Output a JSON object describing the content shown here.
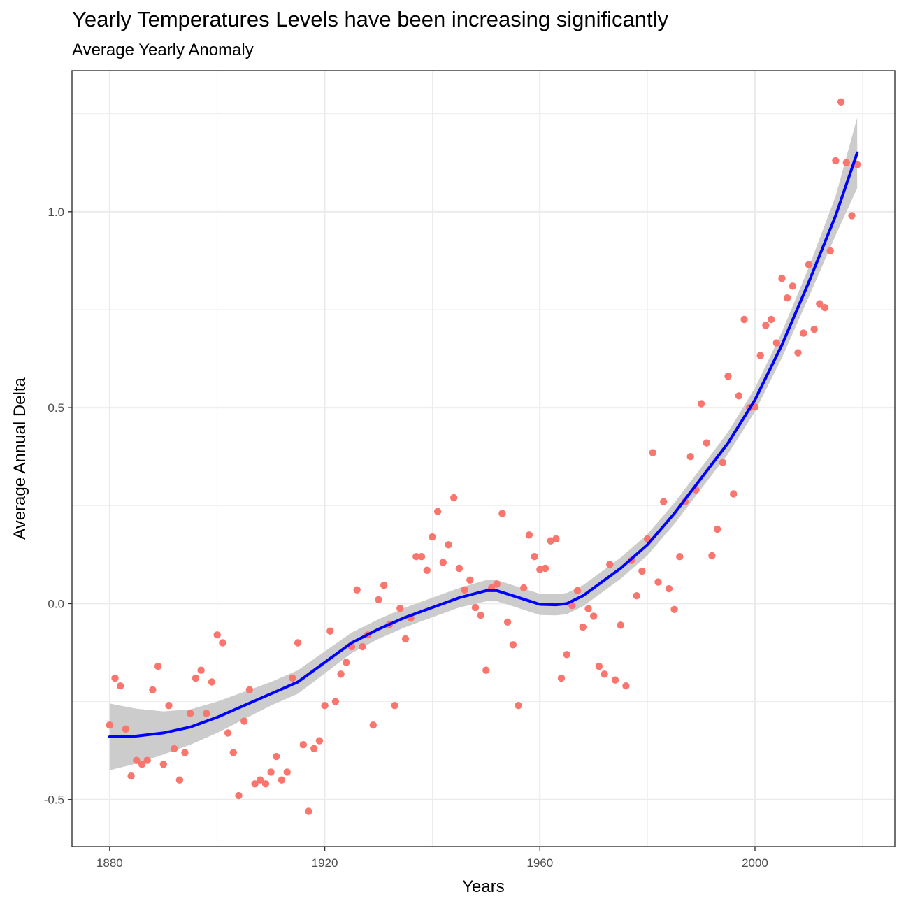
{
  "chart_data": {
    "type": "scatter",
    "title": "Yearly Temperatures Levels have been increasing significantly",
    "subtitle": "Average Yearly Anomaly",
    "xlabel": "Years",
    "ylabel": "Average Annual Delta",
    "xlim": [
      1873,
      2026
    ],
    "ylim": [
      -0.62,
      1.36
    ],
    "x_ticks": [
      1880,
      1920,
      1960,
      2000
    ],
    "x_tick_labels": [
      "1880",
      "1920",
      "1960",
      "2000"
    ],
    "y_ticks": [
      -0.5,
      0.0,
      0.5,
      1.0
    ],
    "y_tick_labels": [
      "-0.5",
      "0.0",
      "0.5",
      "1.0"
    ],
    "grid": true,
    "colors": {
      "points": "#f8766d",
      "smooth": "#0000ff",
      "band": "#cccccc",
      "grid": "#ebebeb",
      "panel_border": "#333333"
    },
    "points": [
      [
        1880,
        -0.31
      ],
      [
        1881,
        -0.19
      ],
      [
        1882,
        -0.21
      ],
      [
        1883,
        -0.32
      ],
      [
        1884,
        -0.44
      ],
      [
        1885,
        -0.4
      ],
      [
        1886,
        -0.41
      ],
      [
        1887,
        -0.4
      ],
      [
        1888,
        -0.22
      ],
      [
        1889,
        -0.16
      ],
      [
        1890,
        -0.41
      ],
      [
        1891,
        -0.26
      ],
      [
        1892,
        -0.37
      ],
      [
        1893,
        -0.45
      ],
      [
        1894,
        -0.38
      ],
      [
        1895,
        -0.28
      ],
      [
        1896,
        -0.19
      ],
      [
        1897,
        -0.17
      ],
      [
        1898,
        -0.28
      ],
      [
        1899,
        -0.2
      ],
      [
        1900,
        -0.08
      ],
      [
        1901,
        -0.1
      ],
      [
        1902,
        -0.33
      ],
      [
        1903,
        -0.38
      ],
      [
        1904,
        -0.49
      ],
      [
        1905,
        -0.3
      ],
      [
        1906,
        -0.22
      ],
      [
        1907,
        -0.46
      ],
      [
        1908,
        -0.45
      ],
      [
        1909,
        -0.46
      ],
      [
        1910,
        -0.43
      ],
      [
        1911,
        -0.39
      ],
      [
        1912,
        -0.45
      ],
      [
        1913,
        -0.43
      ],
      [
        1914,
        -0.19
      ],
      [
        1915,
        -0.1
      ],
      [
        1916,
        -0.36
      ],
      [
        1917,
        -0.53
      ],
      [
        1918,
        -0.37
      ],
      [
        1919,
        -0.35
      ],
      [
        1920,
        -0.26
      ],
      [
        1921,
        -0.07
      ],
      [
        1922,
        -0.25
      ],
      [
        1923,
        -0.18
      ],
      [
        1924,
        -0.15
      ],
      [
        1925,
        -0.11
      ],
      [
        1926,
        0.035
      ],
      [
        1927,
        -0.11
      ],
      [
        1928,
        -0.08
      ],
      [
        1929,
        -0.31
      ],
      [
        1930,
        0.01
      ],
      [
        1931,
        0.047
      ],
      [
        1932,
        -0.054
      ],
      [
        1933,
        -0.26
      ],
      [
        1934,
        -0.012
      ],
      [
        1935,
        -0.09
      ],
      [
        1936,
        -0.037
      ],
      [
        1937,
        0.12
      ],
      [
        1938,
        0.12
      ],
      [
        1939,
        0.085
      ],
      [
        1940,
        0.17
      ],
      [
        1941,
        0.235
      ],
      [
        1942,
        0.105
      ],
      [
        1943,
        0.15
      ],
      [
        1944,
        0.27
      ],
      [
        1945,
        0.09
      ],
      [
        1946,
        0.035
      ],
      [
        1947,
        0.06
      ],
      [
        1948,
        -0.01
      ],
      [
        1949,
        -0.03
      ],
      [
        1950,
        -0.17
      ],
      [
        1951,
        0.04
      ],
      [
        1952,
        0.05
      ],
      [
        1953,
        0.23
      ],
      [
        1954,
        -0.047
      ],
      [
        1955,
        -0.105
      ],
      [
        1956,
        -0.26
      ],
      [
        1957,
        0.04
      ],
      [
        1958,
        0.175
      ],
      [
        1959,
        0.12
      ],
      [
        1960,
        0.087
      ],
      [
        1961,
        0.09
      ],
      [
        1962,
        0.16
      ],
      [
        1963,
        0.165
      ],
      [
        1964,
        -0.19
      ],
      [
        1965,
        -0.13
      ],
      [
        1966,
        -0.005
      ],
      [
        1967,
        0.033
      ],
      [
        1968,
        -0.06
      ],
      [
        1969,
        -0.013
      ],
      [
        1970,
        -0.032
      ],
      [
        1971,
        -0.16
      ],
      [
        1972,
        -0.18
      ],
      [
        1973,
        0.1
      ],
      [
        1974,
        -0.195
      ],
      [
        1975,
        -0.055
      ],
      [
        1976,
        -0.21
      ],
      [
        1977,
        0.11
      ],
      [
        1978,
        0.02
      ],
      [
        1979,
        0.083
      ],
      [
        1980,
        0.165
      ],
      [
        1981,
        0.385
      ],
      [
        1982,
        0.055
      ],
      [
        1983,
        0.26
      ],
      [
        1984,
        0.038
      ],
      [
        1985,
        -0.015
      ],
      [
        1986,
        0.12
      ],
      [
        1987,
        0.26
      ],
      [
        1988,
        0.375
      ],
      [
        1989,
        0.29
      ],
      [
        1990,
        0.51
      ],
      [
        1991,
        0.41
      ],
      [
        1992,
        0.122
      ],
      [
        1993,
        0.19
      ],
      [
        1994,
        0.36
      ],
      [
        1995,
        0.58
      ],
      [
        1996,
        0.28
      ],
      [
        1997,
        0.53
      ],
      [
        1998,
        0.725
      ],
      [
        1999,
        0.5
      ],
      [
        2000,
        0.502
      ],
      [
        2001,
        0.633
      ],
      [
        2002,
        0.71
      ],
      [
        2003,
        0.725
      ],
      [
        2004,
        0.665
      ],
      [
        2005,
        0.83
      ],
      [
        2006,
        0.78
      ],
      [
        2007,
        0.81
      ],
      [
        2008,
        0.64
      ],
      [
        2009,
        0.69
      ],
      [
        2010,
        0.865
      ],
      [
        2011,
        0.7
      ],
      [
        2012,
        0.765
      ],
      [
        2013,
        0.755
      ],
      [
        2014,
        0.9
      ],
      [
        2015,
        1.13
      ],
      [
        2016,
        1.28
      ],
      [
        2017,
        1.125
      ],
      [
        2018,
        0.99
      ],
      [
        2019,
        1.12
      ]
    ],
    "smooth": {
      "x": [
        1880,
        1885,
        1890,
        1895,
        1900,
        1905,
        1910,
        1915,
        1920,
        1925,
        1930,
        1935,
        1940,
        1945,
        1950,
        1952,
        1955,
        1960,
        1963,
        1965,
        1968,
        1970,
        1975,
        1980,
        1985,
        1990,
        1995,
        2000,
        2005,
        2010,
        2015,
        2019
      ],
      "y": [
        -0.34,
        -0.338,
        -0.33,
        -0.315,
        -0.29,
        -0.26,
        -0.23,
        -0.2,
        -0.15,
        -0.1,
        -0.065,
        -0.035,
        -0.01,
        0.015,
        0.033,
        0.033,
        0.02,
        -0.002,
        -0.003,
        0.0,
        0.02,
        0.04,
        0.09,
        0.15,
        0.23,
        0.32,
        0.41,
        0.52,
        0.66,
        0.82,
        0.99,
        1.15
      ],
      "se": [
        0.085,
        0.07,
        0.055,
        0.045,
        0.04,
        0.035,
        0.03,
        0.03,
        0.028,
        0.026,
        0.025,
        0.025,
        0.025,
        0.025,
        0.027,
        0.027,
        0.027,
        0.027,
        0.027,
        0.027,
        0.027,
        0.027,
        0.027,
        0.027,
        0.027,
        0.027,
        0.028,
        0.03,
        0.033,
        0.038,
        0.05,
        0.09
      ]
    }
  }
}
